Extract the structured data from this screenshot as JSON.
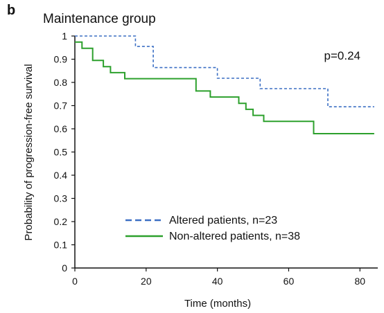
{
  "panel_letter": "b",
  "chart_data": {
    "type": "line",
    "title": "Maintenance group",
    "xlabel": "Time (months)",
    "ylabel": "Probability of progression-free survival",
    "xlim": [
      0,
      85
    ],
    "ylim": [
      0,
      1
    ],
    "x_ticks": [
      0,
      20,
      40,
      60,
      80
    ],
    "y_ticks": [
      0,
      0.1,
      0.2,
      0.3,
      0.4,
      0.5,
      0.6,
      0.7,
      0.8,
      0.9,
      1
    ],
    "grid": false,
    "annotation": "p=0.24",
    "legend_position": "bottom-center",
    "series": [
      {
        "name": "Altered patients, n=23",
        "style": "dashed",
        "color": "#3b6fc4",
        "points": [
          [
            0,
            1
          ],
          [
            17,
            1
          ],
          [
            17,
            0.955
          ],
          [
            22,
            0.955
          ],
          [
            22,
            0.864
          ],
          [
            40,
            0.864
          ],
          [
            40,
            0.818
          ],
          [
            52,
            0.818
          ],
          [
            52,
            0.773
          ],
          [
            71,
            0.773
          ],
          [
            71,
            0.695
          ],
          [
            84,
            0.695
          ]
        ]
      },
      {
        "name": "Non-altered patients, n=38",
        "style": "solid",
        "color": "#2ca02c",
        "points": [
          [
            0,
            0.974
          ],
          [
            2,
            0.974
          ],
          [
            2,
            0.947
          ],
          [
            5,
            0.947
          ],
          [
            5,
            0.895
          ],
          [
            8,
            0.895
          ],
          [
            8,
            0.868
          ],
          [
            10,
            0.868
          ],
          [
            10,
            0.842
          ],
          [
            14,
            0.842
          ],
          [
            14,
            0.816
          ],
          [
            34,
            0.816
          ],
          [
            34,
            0.763
          ],
          [
            38,
            0.763
          ],
          [
            38,
            0.737
          ],
          [
            46,
            0.737
          ],
          [
            46,
            0.71
          ],
          [
            48,
            0.71
          ],
          [
            48,
            0.684
          ],
          [
            50,
            0.684
          ],
          [
            50,
            0.658
          ],
          [
            53,
            0.658
          ],
          [
            53,
            0.632
          ],
          [
            67,
            0.632
          ],
          [
            67,
            0.579
          ],
          [
            84,
            0.579
          ]
        ]
      }
    ]
  }
}
